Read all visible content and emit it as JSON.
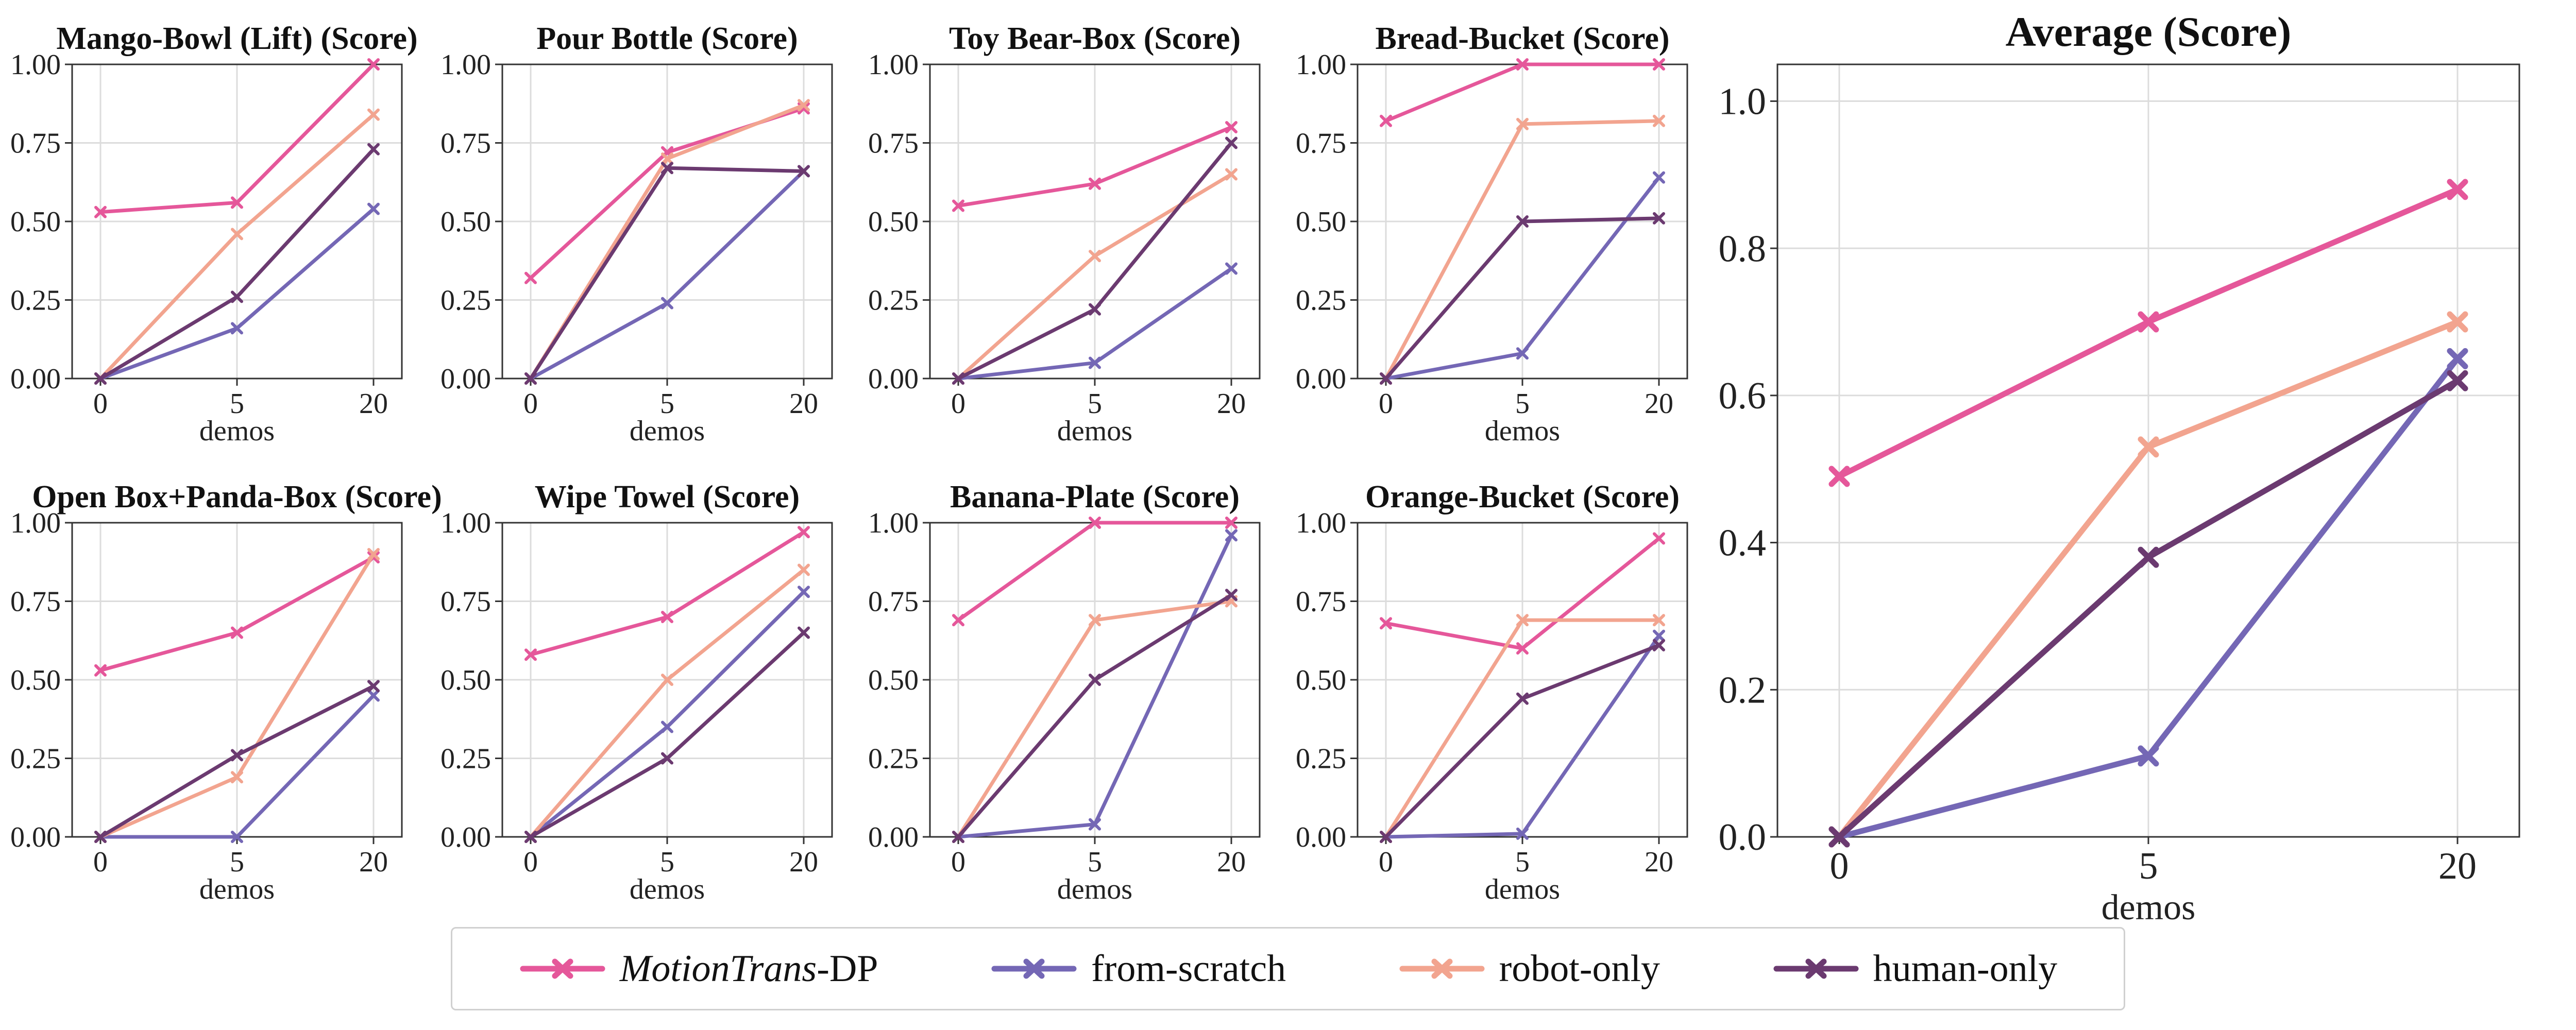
{
  "colors": {
    "MotionTrans-DP": "#e5579a",
    "from-scratch": "#7467b5",
    "robot-only": "#f2a48f",
    "human-only": "#6b3a70"
  },
  "legend": {
    "items": [
      {
        "key": "MotionTrans-DP",
        "italic": "MotionTrans",
        "suffix": "-DP"
      },
      {
        "key": "from-scratch",
        "italic": "",
        "suffix": "from-scratch"
      },
      {
        "key": "robot-only",
        "italic": "",
        "suffix": "robot-only"
      },
      {
        "key": "human-only",
        "italic": "",
        "suffix": "human-only"
      }
    ]
  },
  "chart_data": [
    {
      "type": "line",
      "title": "Mango-Bowl (Lift) (Score)",
      "xlabel": "demos",
      "ylabel": "",
      "categories": [
        "0",
        "5",
        "20"
      ],
      "ylim": [
        0,
        1.0
      ],
      "yticks": [
        "0.00",
        "0.25",
        "0.50",
        "0.75",
        "1.00"
      ],
      "series": [
        {
          "name": "MotionTrans-DP",
          "values": [
            0.53,
            0.56,
            1.0
          ]
        },
        {
          "name": "from-scratch",
          "values": [
            0.0,
            0.16,
            0.54
          ]
        },
        {
          "name": "robot-only",
          "values": [
            0.0,
            0.46,
            0.84
          ]
        },
        {
          "name": "human-only",
          "values": [
            0.0,
            0.26,
            0.73
          ]
        }
      ]
    },
    {
      "type": "line",
      "title": "Pour Bottle (Score)",
      "xlabel": "demos",
      "ylabel": "",
      "categories": [
        "0",
        "5",
        "20"
      ],
      "ylim": [
        0,
        1.0
      ],
      "yticks": [
        "0.00",
        "0.25",
        "0.50",
        "0.75",
        "1.00"
      ],
      "series": [
        {
          "name": "MotionTrans-DP",
          "values": [
            0.32,
            0.72,
            0.86
          ]
        },
        {
          "name": "from-scratch",
          "values": [
            0.0,
            0.24,
            0.66
          ]
        },
        {
          "name": "robot-only",
          "values": [
            0.0,
            0.7,
            0.87
          ]
        },
        {
          "name": "human-only",
          "values": [
            0.0,
            0.67,
            0.66
          ]
        }
      ]
    },
    {
      "type": "line",
      "title": "Toy Bear-Box (Score)",
      "xlabel": "demos",
      "ylabel": "",
      "categories": [
        "0",
        "5",
        "20"
      ],
      "ylim": [
        0,
        1.0
      ],
      "yticks": [
        "0.00",
        "0.25",
        "0.50",
        "0.75",
        "1.00"
      ],
      "series": [
        {
          "name": "MotionTrans-DP",
          "values": [
            0.55,
            0.62,
            0.8
          ]
        },
        {
          "name": "from-scratch",
          "values": [
            0.0,
            0.05,
            0.35
          ]
        },
        {
          "name": "robot-only",
          "values": [
            0.0,
            0.39,
            0.65
          ]
        },
        {
          "name": "human-only",
          "values": [
            0.0,
            0.22,
            0.75
          ]
        }
      ]
    },
    {
      "type": "line",
      "title": "Bread-Bucket (Score)",
      "xlabel": "demos",
      "ylabel": "",
      "categories": [
        "0",
        "5",
        "20"
      ],
      "ylim": [
        0,
        1.0
      ],
      "yticks": [
        "0.00",
        "0.25",
        "0.50",
        "0.75",
        "1.00"
      ],
      "series": [
        {
          "name": "MotionTrans-DP",
          "values": [
            0.82,
            1.0,
            1.0
          ]
        },
        {
          "name": "from-scratch",
          "values": [
            0.0,
            0.08,
            0.64
          ]
        },
        {
          "name": "robot-only",
          "values": [
            0.0,
            0.81,
            0.82
          ]
        },
        {
          "name": "human-only",
          "values": [
            0.0,
            0.5,
            0.51
          ]
        }
      ]
    },
    {
      "type": "line",
      "title": "Open Box+Panda-Box (Score)",
      "xlabel": "demos",
      "ylabel": "",
      "categories": [
        "0",
        "5",
        "20"
      ],
      "ylim": [
        0,
        1.0
      ],
      "yticks": [
        "0.00",
        "0.25",
        "0.50",
        "0.75",
        "1.00"
      ],
      "series": [
        {
          "name": "MotionTrans-DP",
          "values": [
            0.53,
            0.65,
            0.89
          ]
        },
        {
          "name": "from-scratch",
          "values": [
            0.0,
            0.0,
            0.45
          ]
        },
        {
          "name": "robot-only",
          "values": [
            0.0,
            0.19,
            0.9
          ]
        },
        {
          "name": "human-only",
          "values": [
            0.0,
            0.26,
            0.48
          ]
        }
      ]
    },
    {
      "type": "line",
      "title": "Wipe Towel (Score)",
      "xlabel": "demos",
      "ylabel": "",
      "categories": [
        "0",
        "5",
        "20"
      ],
      "ylim": [
        0,
        1.0
      ],
      "yticks": [
        "0.00",
        "0.25",
        "0.50",
        "0.75",
        "1.00"
      ],
      "series": [
        {
          "name": "MotionTrans-DP",
          "values": [
            0.58,
            0.7,
            0.97
          ]
        },
        {
          "name": "from-scratch",
          "values": [
            0.0,
            0.35,
            0.78
          ]
        },
        {
          "name": "robot-only",
          "values": [
            0.0,
            0.5,
            0.85
          ]
        },
        {
          "name": "human-only",
          "values": [
            0.0,
            0.25,
            0.65
          ]
        }
      ]
    },
    {
      "type": "line",
      "title": "Banana-Plate (Score)",
      "xlabel": "demos",
      "ylabel": "",
      "categories": [
        "0",
        "5",
        "20"
      ],
      "ylim": [
        0,
        1.0
      ],
      "yticks": [
        "0.00",
        "0.25",
        "0.50",
        "0.75",
        "1.00"
      ],
      "series": [
        {
          "name": "MotionTrans-DP",
          "values": [
            0.69,
            1.0,
            1.0
          ]
        },
        {
          "name": "from-scratch",
          "values": [
            0.0,
            0.04,
            0.96
          ]
        },
        {
          "name": "robot-only",
          "values": [
            0.0,
            0.69,
            0.75
          ]
        },
        {
          "name": "human-only",
          "values": [
            0.0,
            0.5,
            0.77
          ]
        }
      ]
    },
    {
      "type": "line",
      "title": "Orange-Bucket (Score)",
      "xlabel": "demos",
      "ylabel": "",
      "categories": [
        "0",
        "5",
        "20"
      ],
      "ylim": [
        0,
        1.0
      ],
      "yticks": [
        "0.00",
        "0.25",
        "0.50",
        "0.75",
        "1.00"
      ],
      "series": [
        {
          "name": "MotionTrans-DP",
          "values": [
            0.68,
            0.6,
            0.95
          ]
        },
        {
          "name": "from-scratch",
          "values": [
            0.0,
            0.01,
            0.64
          ]
        },
        {
          "name": "robot-only",
          "values": [
            0.0,
            0.69,
            0.69
          ]
        },
        {
          "name": "human-only",
          "values": [
            0.0,
            0.44,
            0.61
          ]
        }
      ]
    },
    {
      "type": "line",
      "title": "Average (Score)",
      "xlabel": "demos",
      "ylabel": "",
      "categories": [
        "0",
        "5",
        "20"
      ],
      "ylim": [
        0,
        1.05
      ],
      "yticks": [
        "0.0",
        "0.2",
        "0.4",
        "0.6",
        "0.8",
        "1.0"
      ],
      "series": [
        {
          "name": "MotionTrans-DP",
          "values": [
            0.49,
            0.7,
            0.88
          ]
        },
        {
          "name": "from-scratch",
          "values": [
            0.0,
            0.11,
            0.65
          ]
        },
        {
          "name": "robot-only",
          "values": [
            0.0,
            0.53,
            0.7
          ]
        },
        {
          "name": "human-only",
          "values": [
            0.0,
            0.38,
            0.62
          ]
        }
      ]
    }
  ]
}
